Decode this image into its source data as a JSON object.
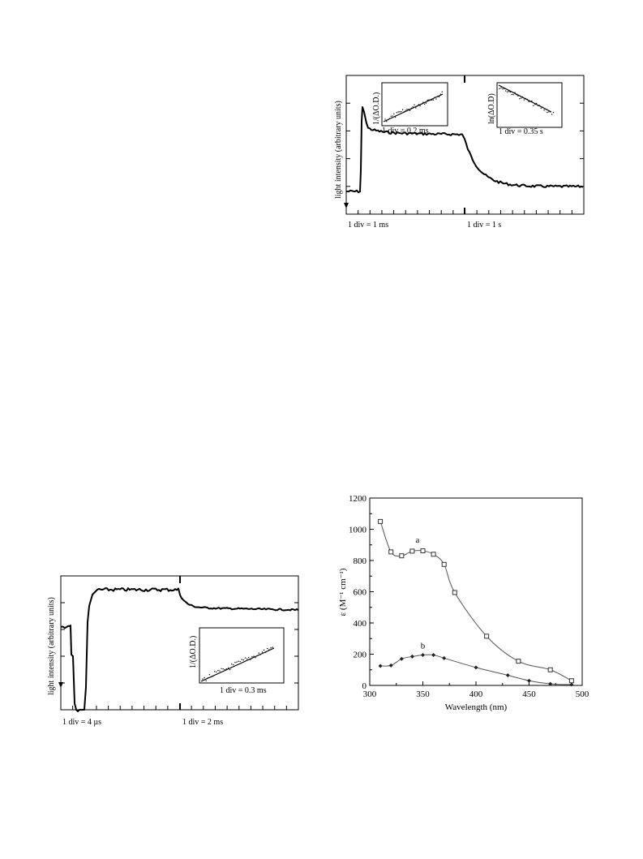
{
  "chart_data": [
    {
      "id": "top-trace",
      "type": "line",
      "ylabel": "light intensity (arbitrary units)",
      "x_segments": [
        {
          "label": "1 div = 1 ms"
        },
        {
          "label": "1 div = 1 s"
        }
      ],
      "insets": [
        {
          "ylabel": "1/(ΔO.D.)",
          "xlabel": "1 div = 0.2 ms"
        },
        {
          "ylabel": "ln(ΔO.D)",
          "xlabel": "1 div = 0.35 s"
        }
      ]
    },
    {
      "id": "bottom-trace",
      "type": "line",
      "ylabel": "light intensity (arbitrary units)",
      "x_segments": [
        {
          "label": "1 div = 4 µs"
        },
        {
          "label": "1 div = 2 ms"
        }
      ],
      "insets": [
        {
          "ylabel": "1/(ΔO.D.)",
          "xlabel": "1 div = 0.3 ms"
        }
      ]
    },
    {
      "id": "spectrum",
      "type": "line",
      "xlabel": "Wavelength (nm)",
      "ylabel": "ε (M⁻¹ cm⁻¹)",
      "xlim": [
        300,
        500
      ],
      "ylim": [
        0,
        1200
      ],
      "xticks": [
        300,
        350,
        400,
        450,
        500
      ],
      "yticks": [
        0,
        200,
        400,
        600,
        800,
        1000,
        1200
      ],
      "series": [
        {
          "name": "a",
          "marker": "square",
          "x": [
            310,
            320,
            330,
            340,
            350,
            360,
            370,
            380,
            410,
            440,
            470,
            490
          ],
          "y": [
            1050,
            855,
            830,
            860,
            862,
            840,
            775,
            595,
            315,
            155,
            100,
            30
          ]
        },
        {
          "name": "b",
          "marker": "diamond",
          "x": [
            310,
            320,
            330,
            340,
            350,
            360,
            370,
            400,
            430,
            450,
            470,
            490
          ],
          "y": [
            125,
            128,
            170,
            185,
            195,
            195,
            175,
            115,
            65,
            30,
            10,
            5
          ]
        }
      ]
    }
  ]
}
